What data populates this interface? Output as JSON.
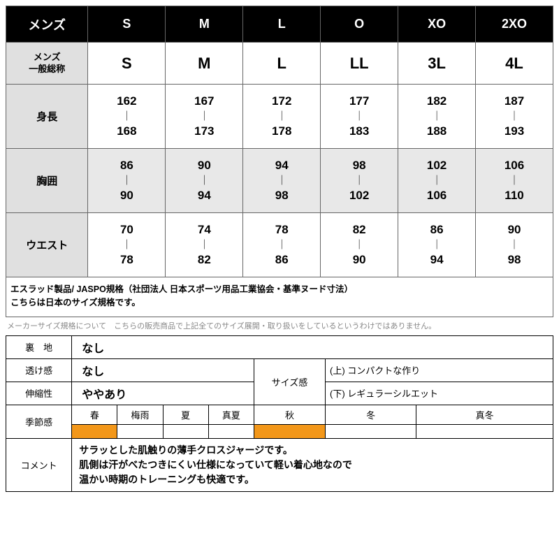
{
  "sizeTable": {
    "headerRow": [
      "メンズ",
      "S",
      "M",
      "L",
      "O",
      "XO",
      "2XO"
    ],
    "generalRow": {
      "label": "メンズ\n一般総称",
      "values": [
        "S",
        "M",
        "L",
        "LL",
        "3L",
        "4L"
      ]
    },
    "measureRows": [
      {
        "label": "身長",
        "bg": "#ffffff",
        "ranges": [
          {
            "lo": "162",
            "hi": "168"
          },
          {
            "lo": "167",
            "hi": "173"
          },
          {
            "lo": "172",
            "hi": "178"
          },
          {
            "lo": "177",
            "hi": "183"
          },
          {
            "lo": "182",
            "hi": "188"
          },
          {
            "lo": "187",
            "hi": "193"
          }
        ]
      },
      {
        "label": "胸囲",
        "bg": "#e8e8e8",
        "ranges": [
          {
            "lo": "86",
            "hi": "90"
          },
          {
            "lo": "90",
            "hi": "94"
          },
          {
            "lo": "94",
            "hi": "98"
          },
          {
            "lo": "98",
            "hi": "102"
          },
          {
            "lo": "102",
            "hi": "106"
          },
          {
            "lo": "106",
            "hi": "110"
          }
        ]
      },
      {
        "label": "ウエスト",
        "bg": "#ffffff",
        "ranges": [
          {
            "lo": "70",
            "hi": "78"
          },
          {
            "lo": "74",
            "hi": "82"
          },
          {
            "lo": "78",
            "hi": "86"
          },
          {
            "lo": "82",
            "hi": "90"
          },
          {
            "lo": "86",
            "hi": "94"
          },
          {
            "lo": "90",
            "hi": "98"
          }
        ]
      }
    ],
    "note1": "エスラッド製品/ JASPO規格（社団法人 日本スポーツ用品工業協会・基準ヌード寸法）",
    "note2": "こちらは日本のサイズ規格です。",
    "subnote": "メーカーサイズ規格について　こちらの販売商品で上記全てのサイズ展開・取り扱いをしているというわけではありません。"
  },
  "specTable": {
    "rows": {
      "lining": {
        "label": "裏　地",
        "value": "なし"
      },
      "sheer": {
        "label": "透け感",
        "value": "なし"
      },
      "stretch": {
        "label": "伸縮性",
        "value": "ややあり"
      },
      "fit": {
        "label": "サイズ感",
        "upper": "(上) コンパクトな作り",
        "lower": "(下) レギュラーシルエット"
      },
      "season": {
        "label": "季節感",
        "items": [
          {
            "name": "春",
            "highlight": true
          },
          {
            "name": "梅雨",
            "highlight": false
          },
          {
            "name": "夏",
            "highlight": false
          },
          {
            "name": "真夏",
            "highlight": false
          },
          {
            "name": "秋",
            "highlight": true
          },
          {
            "name": "冬",
            "highlight": false
          },
          {
            "name": "真冬",
            "highlight": false
          }
        ]
      },
      "comment": {
        "label": "コメント",
        "text": "サラッとした肌触りの薄手クロスジャージです。\n肌側は汗がべたつきにくい仕様になっていて軽い着心地なので\n温かい時期のトレーニングも快適です。"
      }
    },
    "highlightColor": "#f39719"
  }
}
